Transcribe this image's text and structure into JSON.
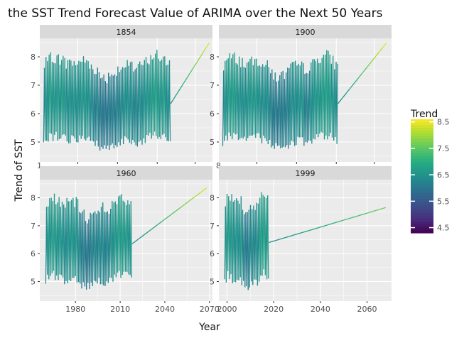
{
  "chart_data": {
    "type": "line",
    "title": "the SST Trend Forecast Value of ARIMA over the Next 50 Years",
    "xlabel": "Year",
    "ylabel": "Trend of SST",
    "ylim": [
      4.3,
      8.65
    ],
    "yticks": [
      5,
      6,
      7,
      8
    ],
    "grid": true,
    "legend": {
      "title": "Trend",
      "position": "right",
      "range": [
        4.3,
        8.6
      ],
      "ticks": [
        "4.5",
        "5.5",
        "6.5",
        "7.5",
        "8.5"
      ],
      "palette": [
        "#440154",
        "#472f7d",
        "#3b518b",
        "#2c718e",
        "#21908d",
        "#27ad81",
        "#5cc863",
        "#aadc32",
        "#fde725"
      ]
    },
    "panels": [
      {
        "strip": "1854",
        "xlim": [
          1849,
          2072
        ],
        "xticks": [],
        "clipped_ticks": [
          {
            "value": 1849,
            "label": "1"
          }
        ],
        "observed": {
          "start": 1854,
          "end": 2018,
          "low_base": 5.2,
          "high_base": 7.6
        },
        "forecast": [
          [
            2018,
            6.35
          ],
          [
            2068,
            8.5
          ]
        ]
      },
      {
        "strip": "1900",
        "xlim": [
          1896,
          2073
        ],
        "xticks": [],
        "clipped_ticks": [
          {
            "value": 1896,
            "label": "8"
          }
        ],
        "observed": {
          "start": 1900,
          "end": 2018,
          "low_base": 5.2,
          "high_base": 7.6
        },
        "forecast": [
          [
            2018,
            6.35
          ],
          [
            2068,
            8.5
          ]
        ]
      },
      {
        "strip": "1960",
        "xlim": [
          1956,
          2072
        ],
        "xticks": [
          1980,
          2010,
          2040,
          2070
        ],
        "xtick_labels": [
          "1980",
          "2010",
          "2040",
          "2070"
        ],
        "observed": {
          "start": 1960,
          "end": 2018,
          "low_base": 5.2,
          "high_base": 7.6
        },
        "forecast": [
          [
            2018,
            6.35
          ],
          [
            2068,
            8.35
          ]
        ]
      },
      {
        "strip": "1999",
        "xlim": [
          1996.5,
          2070.5
        ],
        "xticks": [
          2000,
          2020,
          2040,
          2060
        ],
        "xtick_labels": [
          "2000",
          "2020",
          "2040",
          "2060"
        ],
        "observed": {
          "start": 1999,
          "end": 2018,
          "low_base": 5.2,
          "high_base": 7.7
        },
        "forecast": [
          [
            2018,
            6.4
          ],
          [
            2068,
            7.65
          ]
        ]
      }
    ]
  }
}
